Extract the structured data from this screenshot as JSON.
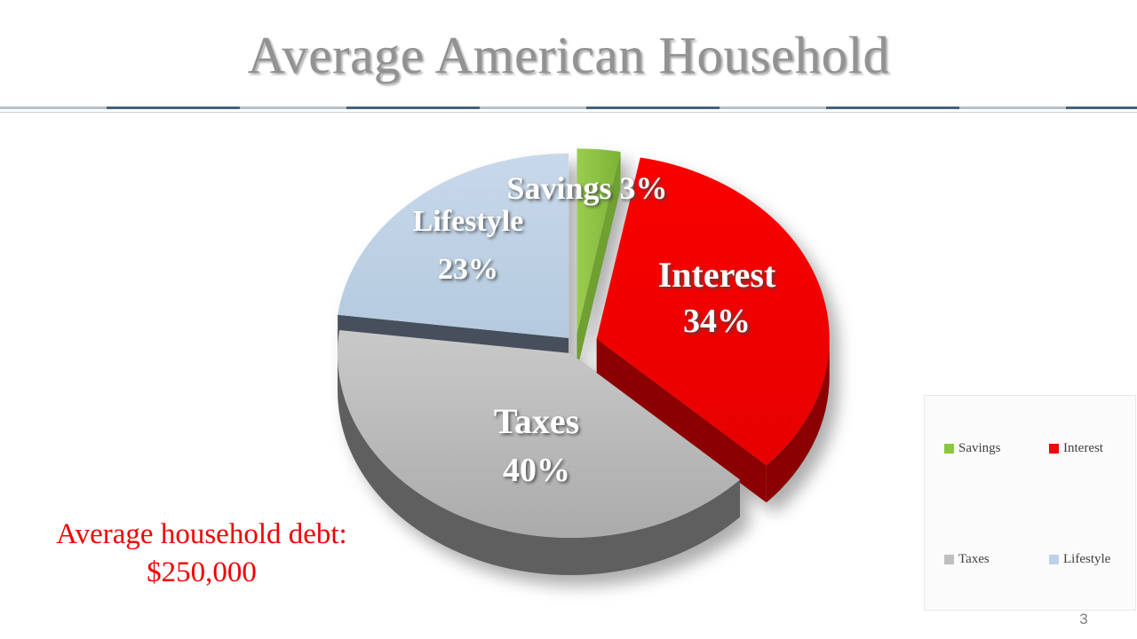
{
  "slide": {
    "title": "Average American Household",
    "title_color": "#929292",
    "note_line1": "Average household debt:",
    "note_line2": "$250,000",
    "note_color": "#F20000",
    "page_number": "3"
  },
  "chart_data": {
    "type": "pie",
    "title": "Average American Household",
    "labels": [
      "Savings",
      "Interest",
      "Taxes",
      "Lifestyle"
    ],
    "values": [
      3,
      34,
      40,
      23
    ],
    "unit": "percent",
    "slice_label_texts": [
      "Savings 3%",
      "Interest 34%",
      "Taxes 40%",
      "Lifestyle 23%"
    ],
    "colors": [
      "#8CC63F",
      "#ED0909",
      "#BFBFBF",
      "#BDD2E8"
    ],
    "side_colors": [
      "#6F9F33",
      "#8B0000",
      "#5E5E5E",
      "#46505C"
    ],
    "top_gradients": [
      [
        "#9ACD50",
        "#7CB335"
      ],
      [
        "#FA0505",
        "#E60000"
      ],
      [
        "#C9C9C9",
        "#ABABAB"
      ],
      [
        "#C8D8EA",
        "#B4CADF"
      ]
    ],
    "effect": "3d-exploded",
    "start_angle": "12-o-clock",
    "legend": {
      "position": "bottom-right",
      "entries": [
        "Savings",
        "Interest",
        "Taxes",
        "Lifestyle"
      ]
    },
    "annotation": "Average household debt: $250,000"
  }
}
